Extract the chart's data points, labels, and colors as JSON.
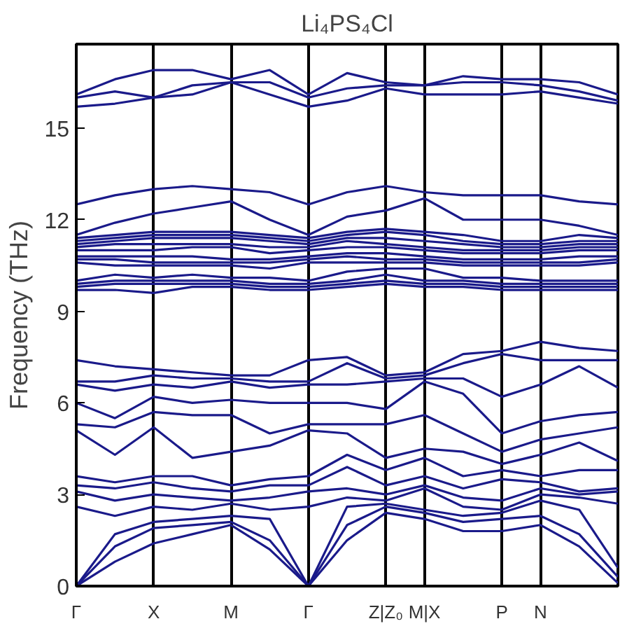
{
  "chart_data": {
    "type": "line",
    "title": "Li₄PS₄Cl",
    "ylabel": "Frequency (THz)",
    "categories": [
      "Γ",
      null,
      "X",
      null,
      "M",
      null,
      "Γ",
      null,
      "Z|Z₀",
      "M|X",
      null,
      "P",
      "N",
      null,
      null
    ],
    "ylim": [
      0,
      17.75
    ],
    "yticks": [
      0,
      3,
      6,
      9,
      12,
      15
    ],
    "grid": "x",
    "series": [
      {
        "color": "#1a1a8a",
        "values": [
          0,
          0.8,
          1.4,
          1.7,
          2.0,
          1.2,
          0,
          1.5,
          2.4,
          2.2,
          1.8,
          1.8,
          2.0,
          1.3,
          0.1
        ]
      },
      {
        "color": "#1a1a8a",
        "values": [
          0,
          1.3,
          1.9,
          2.0,
          2.1,
          1.5,
          0,
          2.0,
          2.6,
          2.4,
          2.1,
          2.2,
          2.3,
          1.7,
          0.3
        ]
      },
      {
        "color": "#1a1a8a",
        "values": [
          0,
          1.7,
          2.1,
          2.2,
          2.3,
          2.2,
          0,
          2.6,
          2.7,
          2.5,
          2.3,
          2.4,
          2.8,
          2.5,
          0.6
        ]
      },
      {
        "color": "#1a1a8a",
        "values": [
          2.6,
          2.3,
          2.6,
          2.5,
          2.7,
          2.5,
          2.6,
          2.9,
          2.8,
          3.2,
          2.6,
          2.5,
          3.0,
          2.9,
          2.7
        ]
      },
      {
        "color": "#1a1a8a",
        "values": [
          3.1,
          2.8,
          3.0,
          2.9,
          2.8,
          2.9,
          3.1,
          3.2,
          3.0,
          3.3,
          2.9,
          2.8,
          3.2,
          3.0,
          3.1
        ]
      },
      {
        "color": "#1a1a8a",
        "values": [
          3.3,
          3.2,
          3.4,
          3.2,
          3.1,
          3.3,
          3.3,
          3.9,
          3.3,
          3.6,
          3.2,
          3.5,
          3.4,
          3.1,
          3.2
        ]
      },
      {
        "color": "#1a1a8a",
        "values": [
          3.6,
          3.4,
          3.6,
          3.6,
          3.3,
          3.5,
          3.6,
          4.3,
          3.8,
          4.2,
          3.6,
          3.8,
          3.6,
          3.8,
          3.8
        ]
      },
      {
        "color": "#1a1a8a",
        "values": [
          5.1,
          4.3,
          5.2,
          4.2,
          4.4,
          4.6,
          5.1,
          5.0,
          4.2,
          4.5,
          4.4,
          4.0,
          4.3,
          4.7,
          4.1
        ]
      },
      {
        "color": "#1a1a8a",
        "values": [
          5.3,
          5.2,
          5.7,
          5.6,
          5.6,
          5.0,
          5.3,
          5.3,
          5.3,
          5.6,
          5.0,
          4.4,
          4.8,
          5.0,
          5.2
        ]
      },
      {
        "color": "#1a1a8a",
        "values": [
          6.0,
          5.5,
          6.2,
          6.0,
          6.1,
          6.0,
          6.0,
          6.0,
          5.8,
          6.7,
          6.3,
          5.0,
          5.4,
          5.6,
          5.7
        ]
      },
      {
        "color": "#1a1a8a",
        "values": [
          6.6,
          6.4,
          6.6,
          6.5,
          6.7,
          6.5,
          6.6,
          6.6,
          6.7,
          6.8,
          6.8,
          6.2,
          6.6,
          7.2,
          6.5
        ]
      },
      {
        "color": "#1a1a8a",
        "values": [
          6.7,
          6.7,
          6.9,
          6.8,
          6.8,
          6.7,
          6.7,
          7.3,
          6.8,
          6.9,
          7.3,
          7.6,
          7.4,
          7.4,
          7.4
        ]
      },
      {
        "color": "#1a1a8a",
        "values": [
          7.4,
          7.2,
          7.1,
          7.0,
          6.9,
          6.9,
          7.4,
          7.5,
          6.9,
          7.0,
          7.6,
          7.7,
          8.0,
          7.8,
          7.7
        ]
      },
      {
        "color": "#1a1a8a",
        "values": [
          9.7,
          9.7,
          9.6,
          9.8,
          9.8,
          9.7,
          9.7,
          9.8,
          9.9,
          9.8,
          9.8,
          9.7,
          9.7,
          9.7,
          9.7
        ]
      },
      {
        "color": "#1a1a8a",
        "values": [
          9.8,
          9.9,
          9.9,
          9.9,
          9.9,
          9.8,
          9.8,
          9.9,
          10.0,
          9.9,
          9.9,
          9.8,
          9.8,
          9.8,
          9.8
        ]
      },
      {
        "color": "#1a1a8a",
        "values": [
          9.9,
          10.0,
          10.0,
          10.0,
          10.0,
          9.9,
          9.9,
          10.0,
          10.2,
          10.0,
          10.0,
          9.9,
          9.9,
          9.9,
          9.9
        ]
      },
      {
        "color": "#1a1a8a",
        "values": [
          10.0,
          10.2,
          10.1,
          10.2,
          10.1,
          10.1,
          10.0,
          10.3,
          10.4,
          10.4,
          10.1,
          10.1,
          10.0,
          10.0,
          10.0
        ]
      },
      {
        "color": "#1a1a8a",
        "values": [
          10.6,
          10.5,
          10.5,
          10.5,
          10.5,
          10.4,
          10.6,
          10.6,
          10.6,
          10.6,
          10.5,
          10.5,
          10.5,
          10.5,
          10.6
        ]
      },
      {
        "color": "#1a1a8a",
        "values": [
          10.7,
          10.7,
          10.6,
          10.6,
          10.6,
          10.6,
          10.7,
          10.8,
          10.7,
          10.7,
          10.6,
          10.6,
          10.6,
          10.6,
          10.7
        ]
      },
      {
        "color": "#1a1a8a",
        "values": [
          10.8,
          10.8,
          10.8,
          10.8,
          10.7,
          10.7,
          10.8,
          10.9,
          10.9,
          10.8,
          10.7,
          10.7,
          10.7,
          10.8,
          10.8
        ]
      },
      {
        "color": "#1a1a8a",
        "values": [
          11.0,
          11.0,
          11.0,
          11.1,
          11.1,
          10.9,
          11.0,
          11.1,
          11.1,
          11.0,
          10.9,
          10.9,
          10.9,
          11.0,
          11.0
        ]
      },
      {
        "color": "#1a1a8a",
        "values": [
          11.1,
          11.2,
          11.2,
          11.2,
          11.2,
          11.1,
          11.1,
          11.3,
          11.2,
          11.1,
          11.0,
          11.0,
          11.0,
          11.1,
          11.1
        ]
      },
      {
        "color": "#1a1a8a",
        "values": [
          11.2,
          11.3,
          11.4,
          11.4,
          11.4,
          11.3,
          11.2,
          11.4,
          11.4,
          11.3,
          11.2,
          11.1,
          11.1,
          11.2,
          11.2
        ]
      },
      {
        "color": "#1a1a8a",
        "values": [
          11.3,
          11.4,
          11.5,
          11.5,
          11.5,
          11.4,
          11.3,
          11.5,
          11.6,
          11.5,
          11.3,
          11.2,
          11.2,
          11.3,
          11.3
        ]
      },
      {
        "color": "#1a1a8a",
        "values": [
          11.4,
          11.5,
          11.6,
          11.6,
          11.6,
          11.5,
          11.4,
          11.6,
          11.7,
          11.6,
          11.5,
          11.3,
          11.3,
          11.5,
          11.4
        ]
      },
      {
        "color": "#1a1a8a",
        "values": [
          11.5,
          11.9,
          12.2,
          12.4,
          12.6,
          12.0,
          11.5,
          12.1,
          12.3,
          12.7,
          12.0,
          12.0,
          12.0,
          11.8,
          11.5
        ]
      },
      {
        "color": "#1a1a8a",
        "values": [
          12.5,
          12.8,
          13.0,
          13.1,
          13.0,
          12.9,
          12.5,
          12.9,
          13.1,
          12.9,
          12.8,
          12.8,
          12.8,
          12.6,
          12.5
        ]
      },
      {
        "color": "#1a1a8a",
        "values": [
          15.7,
          15.8,
          16.0,
          16.1,
          16.5,
          16.1,
          15.7,
          15.9,
          16.3,
          16.1,
          16.1,
          16.1,
          16.2,
          16.0,
          15.8
        ]
      },
      {
        "color": "#1a1a8a",
        "values": [
          16.0,
          16.2,
          16.0,
          16.4,
          16.5,
          16.5,
          16.0,
          16.3,
          16.4,
          16.4,
          16.5,
          16.5,
          16.4,
          16.2,
          15.9
        ]
      },
      {
        "color": "#1a1a8a",
        "values": [
          16.1,
          16.6,
          16.9,
          16.9,
          16.6,
          16.9,
          16.1,
          16.8,
          16.5,
          16.4,
          16.7,
          16.6,
          16.6,
          16.5,
          16.1
        ]
      }
    ]
  }
}
